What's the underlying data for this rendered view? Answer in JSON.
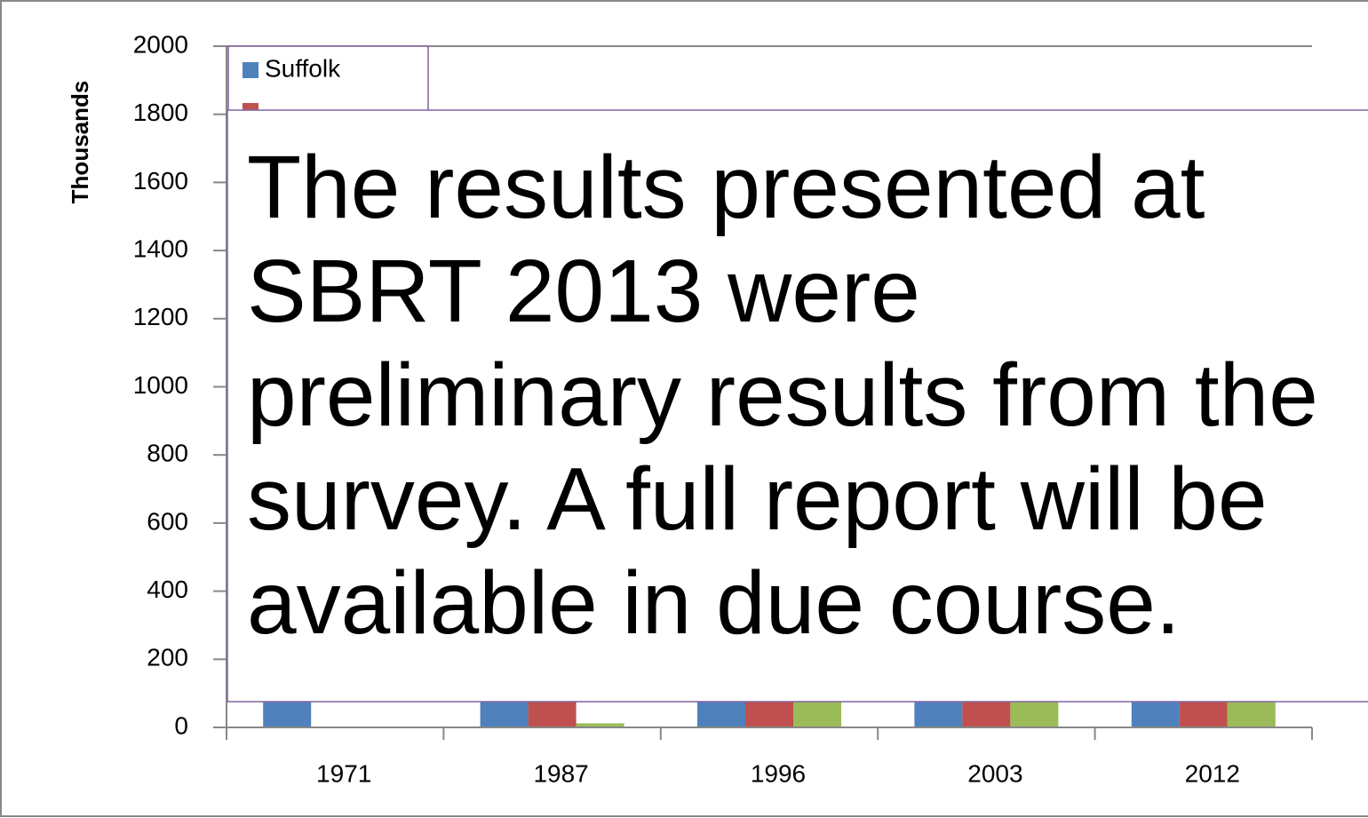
{
  "chart_data": {
    "type": "bar",
    "y_label": "Thousands",
    "categories": [
      "1971",
      "1987",
      "1996",
      "2003",
      "2012"
    ],
    "series": [
      {
        "name": "Suffolk",
        "color": "#4f81bd",
        "values": [
          300,
          400,
          500,
          600,
          700
        ]
      },
      {
        "name": null,
        "color": "#c0504d",
        "values": [
          0,
          350,
          450,
          550,
          650
        ]
      },
      {
        "name": null,
        "color": "#9bbb59",
        "values": [
          0,
          12,
          300,
          450,
          550
        ]
      }
    ],
    "ylim": [
      0,
      2000
    ],
    "yticks": [
      0,
      200,
      400,
      600,
      800,
      1000,
      1200,
      1400,
      1600,
      1800,
      2000
    ],
    "grid": true,
    "annotation": {
      "lines": [
        "The results presented at",
        "SBRT 2013 were",
        "preliminary results from the",
        "survey. A full report will be",
        "available in due course."
      ]
    }
  }
}
